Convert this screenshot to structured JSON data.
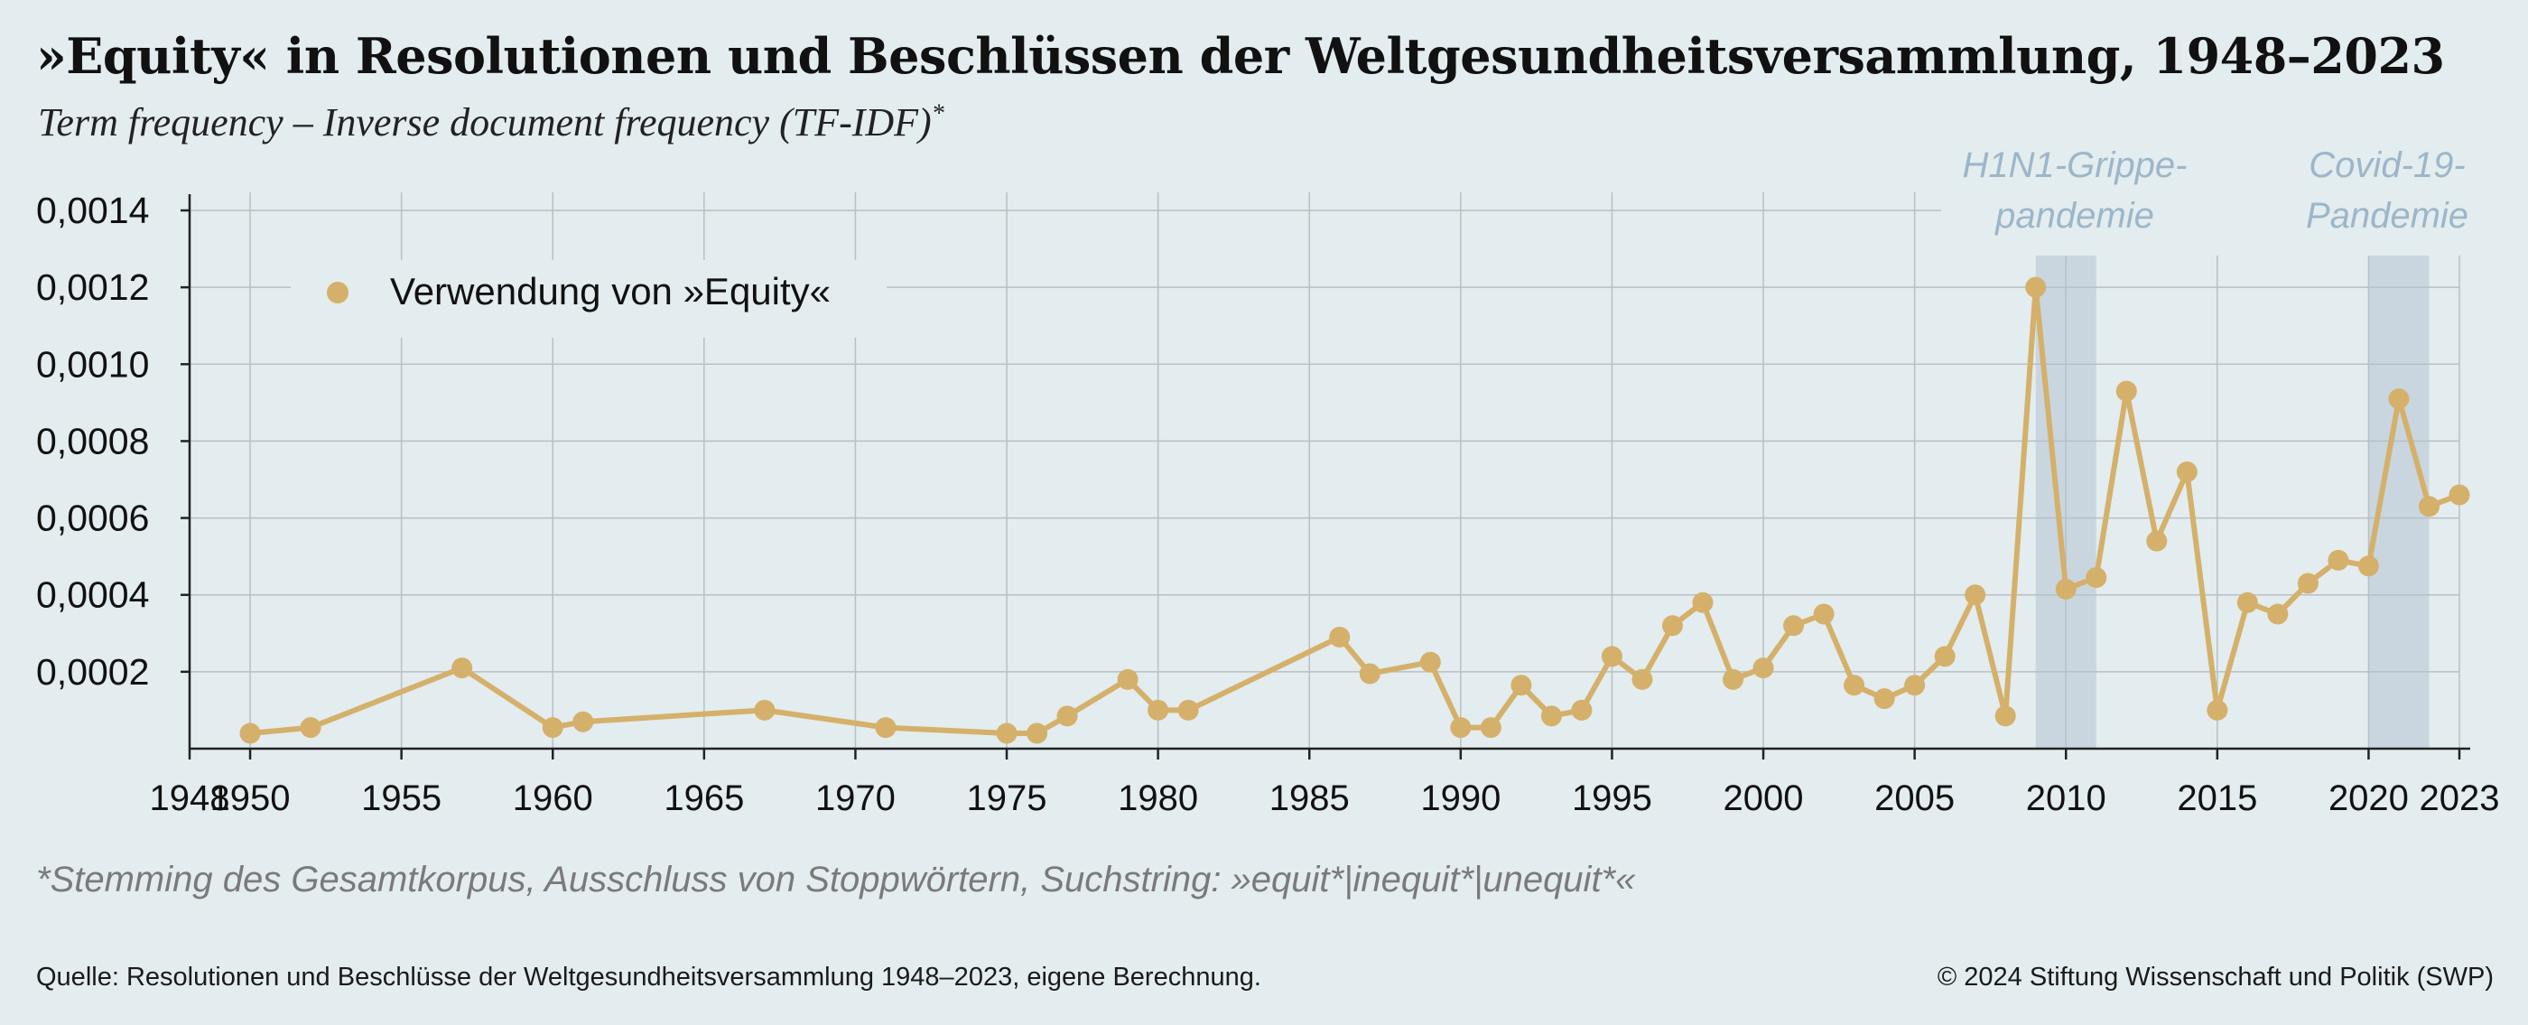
{
  "header": {
    "title": "»Equity« in Resolutionen und Beschlüssen der Weltgesundheitsversammlung, 1948–2023",
    "subtitle": "Term frequency – Inverse document frequency (TF-IDF)",
    "subtitle_mark": "*"
  },
  "footer": {
    "footnote": "*Stemming des Gesamtkorpus, Ausschluss von Stoppwörtern, Suchstring: »equit*|inequit*|unequit*«",
    "source": "Quelle: Resolutionen und Beschlüsse der Weltgesundheitsversammlung 1948–2023, eigene Berechnung.",
    "copyright": "© 2024 Stiftung Wissenschaft und Politik (SWP)"
  },
  "colors": {
    "background": "#e3ecee",
    "series": "#d4b06a",
    "shade": "#c9d6e0",
    "shade_label": "#9cb6c9",
    "grid": "#b9bfc2"
  },
  "chart_data": {
    "type": "line",
    "xlim": [
      1948,
      2023
    ],
    "ylim": [
      0,
      0.0014
    ],
    "x_ticks": [
      1948,
      1950,
      1955,
      1960,
      1965,
      1970,
      1975,
      1980,
      1985,
      1990,
      1995,
      2000,
      2005,
      2010,
      2015,
      2020,
      2023
    ],
    "y_ticks": [
      {
        "value": 0.0002,
        "label": "0,0002"
      },
      {
        "value": 0.0004,
        "label": "0,0004"
      },
      {
        "value": 0.0006,
        "label": "0,0006"
      },
      {
        "value": 0.0008,
        "label": "0,0008"
      },
      {
        "value": 0.001,
        "label": "0,0010"
      },
      {
        "value": 0.0012,
        "label": "0,0012"
      },
      {
        "value": 0.0014,
        "label": "0,0014"
      }
    ],
    "grid": true,
    "legend_position": "top-left",
    "shaded_periods": [
      {
        "start": 2009,
        "end": 2011,
        "label_lines": [
          "H1N1-Grippe-",
          "pandemie"
        ]
      },
      {
        "start": 2020,
        "end": 2022,
        "label_lines": [
          "Covid-19-",
          "Pandemie"
        ]
      }
    ],
    "series": [
      {
        "name": "Verwendung von »Equity«",
        "points": [
          [
            1950,
            4e-05
          ],
          [
            1952,
            5.5e-05
          ],
          [
            1957,
            0.00021
          ],
          [
            1960,
            5.5e-05
          ],
          [
            1961,
            7e-05
          ],
          [
            1967,
            0.0001
          ],
          [
            1971,
            5.5e-05
          ],
          [
            1975,
            4e-05
          ],
          [
            1976,
            4e-05
          ],
          [
            1977,
            8.5e-05
          ],
          [
            1979,
            0.00018
          ],
          [
            1980,
            0.0001
          ],
          [
            1981,
            0.0001
          ],
          [
            1986,
            0.00029
          ],
          [
            1987,
            0.000195
          ],
          [
            1989,
            0.000225
          ],
          [
            1990,
            5.5e-05
          ],
          [
            1991,
            5.5e-05
          ],
          [
            1992,
            0.000165
          ],
          [
            1993,
            8.5e-05
          ],
          [
            1994,
            0.0001
          ],
          [
            1995,
            0.00024
          ],
          [
            1996,
            0.00018
          ],
          [
            1997,
            0.00032
          ],
          [
            1998,
            0.00038
          ],
          [
            1999,
            0.00018
          ],
          [
            2000,
            0.00021
          ],
          [
            2001,
            0.00032
          ],
          [
            2002,
            0.00035
          ],
          [
            2003,
            0.000165
          ],
          [
            2004,
            0.00013
          ],
          [
            2005,
            0.000165
          ],
          [
            2006,
            0.00024
          ],
          [
            2007,
            0.0004
          ],
          [
            2008,
            8.5e-05
          ],
          [
            2009,
            0.0012
          ],
          [
            2010,
            0.000415
          ],
          [
            2011,
            0.000445
          ],
          [
            2012,
            0.00093
          ],
          [
            2013,
            0.00054
          ],
          [
            2014,
            0.00072
          ],
          [
            2015,
            0.0001
          ],
          [
            2016,
            0.00038
          ],
          [
            2017,
            0.00035
          ],
          [
            2018,
            0.00043
          ],
          [
            2019,
            0.00049
          ],
          [
            2020,
            0.000475
          ],
          [
            2021,
            0.00091
          ],
          [
            2022,
            0.00063
          ],
          [
            2023,
            0.00066
          ]
        ]
      }
    ]
  }
}
